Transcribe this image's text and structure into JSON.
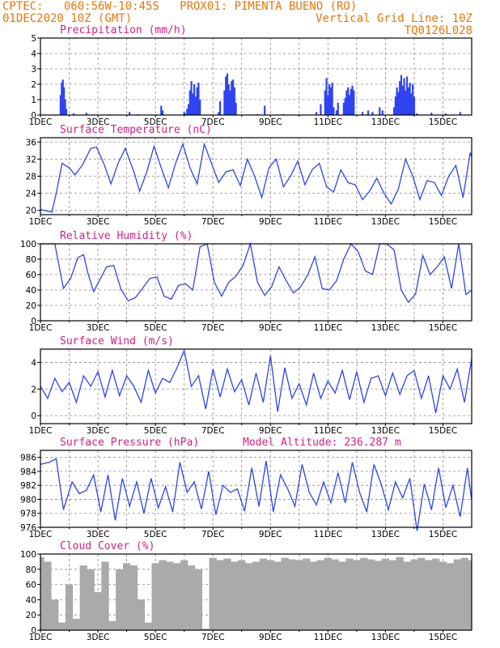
{
  "header": {
    "line1": "CPTEC:   060:56W-10:45S   PROX01: PIMENTA BUENO (RO)",
    "line2_left": "01DEC2020 10Z (GMT)",
    "line2_right": "Vertical Grid Line: 10Z",
    "line3_right": "TQ0126L028"
  },
  "colors": {
    "accent": "#e8760a",
    "title": "#d6207f",
    "series": "#2f44f0",
    "cloud": "#aaaaaa",
    "grid": "#8a8a8a"
  },
  "x_ticks": [
    "1DEC",
    "3DEC",
    "5DEC",
    "7DEC",
    "9DEC",
    "11DEC",
    "13DEC",
    "15DEC"
  ],
  "x_range_days": [
    0,
    15
  ],
  "chart_data": [
    {
      "id": "precip",
      "type": "bar",
      "title": "Precipitation (mm/h)",
      "ylim": [
        0,
        5
      ],
      "yticks": [
        0,
        1,
        2,
        3,
        4,
        5
      ],
      "x_unit": "days since 01DEC2020 10Z",
      "bars": [
        [
          0.7,
          1.3
        ],
        [
          0.74,
          2.1
        ],
        [
          0.78,
          2.3
        ],
        [
          0.82,
          1.8
        ],
        [
          0.86,
          1.0
        ],
        [
          0.9,
          0.4
        ],
        [
          1.15,
          0.1
        ],
        [
          1.6,
          0.15
        ],
        [
          2.4,
          0.05
        ],
        [
          3.1,
          0.2
        ],
        [
          3.4,
          0.05
        ],
        [
          3.4,
          0.05
        ],
        [
          4.2,
          0.6
        ],
        [
          4.25,
          0.3
        ],
        [
          5.0,
          0.2
        ],
        [
          5.05,
          0.1
        ],
        [
          5.1,
          0.4
        ],
        [
          5.15,
          0.7
        ],
        [
          5.2,
          1.6
        ],
        [
          5.25,
          2.2
        ],
        [
          5.3,
          1.4
        ],
        [
          5.35,
          2.0
        ],
        [
          5.4,
          1.2
        ],
        [
          5.45,
          1.8
        ],
        [
          5.5,
          2.1
        ],
        [
          5.55,
          1.0
        ],
        [
          6.2,
          0.2
        ],
        [
          6.25,
          0.9
        ],
        [
          6.4,
          1.6
        ],
        [
          6.45,
          2.5
        ],
        [
          6.5,
          2.7
        ],
        [
          6.55,
          2.0
        ],
        [
          6.6,
          1.6
        ],
        [
          6.65,
          2.2
        ],
        [
          6.7,
          2.3
        ],
        [
          6.75,
          1.8
        ],
        [
          6.8,
          0.8
        ],
        [
          7.55,
          0.05
        ],
        [
          7.8,
          0.6
        ],
        [
          8.45,
          0.05
        ],
        [
          9.0,
          0.05
        ],
        [
          9.6,
          0.2
        ],
        [
          9.75,
          0.7
        ],
        [
          9.9,
          1.6
        ],
        [
          9.95,
          2.4
        ],
        [
          10.0,
          1.3
        ],
        [
          10.05,
          2.0
        ],
        [
          10.1,
          1.8
        ],
        [
          10.15,
          2.1
        ],
        [
          10.2,
          0.5
        ],
        [
          10.3,
          0.3
        ],
        [
          10.35,
          0.8
        ],
        [
          10.55,
          0.8
        ],
        [
          10.6,
          1.1
        ],
        [
          10.65,
          1.6
        ],
        [
          10.7,
          1.8
        ],
        [
          10.75,
          1.3
        ],
        [
          10.8,
          1.7
        ],
        [
          10.85,
          1.9
        ],
        [
          10.9,
          1.6
        ],
        [
          11.2,
          0.2
        ],
        [
          11.4,
          0.3
        ],
        [
          11.55,
          0.2
        ],
        [
          11.8,
          0.5
        ],
        [
          11.9,
          0.3
        ],
        [
          12.3,
          0.5
        ],
        [
          12.35,
          1.2
        ],
        [
          12.4,
          1.8
        ],
        [
          12.45,
          1.5
        ],
        [
          12.5,
          2.2
        ],
        [
          12.55,
          2.6
        ],
        [
          12.6,
          1.9
        ],
        [
          12.65,
          2.4
        ],
        [
          12.7,
          1.6
        ],
        [
          12.75,
          2.5
        ],
        [
          12.8,
          1.8
        ],
        [
          12.85,
          2.1
        ],
        [
          12.9,
          1.4
        ],
        [
          12.95,
          2.0
        ],
        [
          13.0,
          1.2
        ],
        [
          13.1,
          0.1
        ],
        [
          13.6,
          0.15
        ],
        [
          14.1,
          0.1
        ],
        [
          14.6,
          0.2
        ]
      ]
    },
    {
      "id": "temp",
      "type": "line",
      "title": "Surface Temperature (nC)",
      "ylim": [
        19,
        37
      ],
      "yticks": [
        20,
        24,
        28,
        32,
        36
      ],
      "x_unit": "days since 01DEC2020 10Z",
      "x": [
        0,
        0.4,
        0.55,
        0.75,
        1.0,
        1.2,
        1.45,
        1.75,
        1.95,
        2.2,
        2.45,
        2.7,
        2.95,
        3.25,
        3.45,
        3.7,
        3.95,
        4.2,
        4.45,
        4.7,
        4.95,
        5.2,
        5.45,
        5.7,
        5.95,
        6.2,
        6.45,
        6.7,
        6.95,
        7.2,
        7.45,
        7.7,
        7.95,
        8.2,
        8.45,
        8.7,
        8.95,
        9.2,
        9.45,
        9.7,
        9.95,
        10.2,
        10.45,
        10.7,
        10.95,
        11.2,
        11.45,
        11.7,
        11.95,
        12.2,
        12.45,
        12.7,
        12.95,
        13.2,
        13.45,
        13.7,
        13.95,
        14.2,
        14.45,
        14.7,
        14.95,
        15.0
      ],
      "values": [
        20.2,
        19.6,
        24,
        31,
        30,
        28.3,
        30.5,
        34.5,
        34.8,
        31,
        26.2,
        31,
        34.5,
        29,
        24.5,
        29,
        35,
        30,
        25.3,
        31,
        35.5,
        30,
        26.2,
        35.5,
        31,
        26.5,
        29,
        29.5,
        25.8,
        32,
        28,
        23,
        30,
        32,
        25.5,
        28,
        31.5,
        26,
        29.5,
        31,
        25.5,
        24.3,
        29.5,
        26.5,
        26,
        22.5,
        24.5,
        27.5,
        24,
        21.5,
        25,
        32,
        28,
        22.5,
        27,
        26.5,
        23.5,
        28,
        30.5,
        23,
        33.5,
        32.5
      ]
    },
    {
      "id": "rh",
      "type": "line",
      "title": "Relative Humidity (%)",
      "ylim": [
        0,
        100
      ],
      "yticks": [
        0,
        20,
        40,
        60,
        80,
        100
      ],
      "x_unit": "days since 01DEC2020 10Z",
      "x": [
        0,
        0.5,
        0.8,
        1.05,
        1.3,
        1.5,
        1.65,
        1.85,
        2.05,
        2.3,
        2.55,
        2.8,
        3.05,
        3.3,
        3.55,
        3.8,
        4.05,
        4.3,
        4.55,
        4.8,
        5.05,
        5.3,
        5.55,
        5.8,
        6.05,
        6.3,
        6.55,
        6.8,
        7.05,
        7.3,
        7.55,
        7.8,
        8.05,
        8.3,
        8.55,
        8.8,
        9.05,
        9.3,
        9.55,
        9.8,
        10.05,
        10.3,
        10.55,
        10.8,
        11.05,
        11.3,
        11.55,
        11.8,
        12.05,
        12.3,
        12.55,
        12.8,
        13.05,
        13.3,
        13.55,
        13.8,
        14.05,
        14.3,
        14.55,
        14.8,
        15.0
      ],
      "values": [
        100,
        100,
        42,
        55,
        82,
        86,
        62,
        38,
        52,
        70,
        72,
        41,
        26,
        30,
        42,
        55,
        57,
        32,
        28,
        46,
        48,
        40,
        96,
        100,
        50,
        32,
        50,
        58,
        72,
        100,
        50,
        33,
        45,
        70,
        52,
        36,
        44,
        60,
        83,
        42,
        40,
        52,
        80,
        100,
        90,
        65,
        60,
        100,
        100,
        92,
        40,
        24,
        35,
        85,
        60,
        70,
        83,
        42,
        100,
        34,
        40
      ]
    },
    {
      "id": "wind",
      "type": "line",
      "title": "Surface Wind (m/s)",
      "ylim": [
        -0.6,
        5
      ],
      "yticks": [
        0,
        2,
        4
      ],
      "x_unit": "days since 01DEC2020 10Z",
      "x": [
        0,
        0.25,
        0.5,
        0.75,
        1.0,
        1.25,
        1.5,
        1.75,
        2.0,
        2.25,
        2.5,
        2.75,
        3.0,
        3.25,
        3.5,
        3.75,
        4.0,
        4.25,
        4.5,
        4.75,
        5.0,
        5.25,
        5.5,
        5.75,
        6.0,
        6.25,
        6.5,
        6.75,
        7.0,
        7.25,
        7.5,
        7.75,
        8.0,
        8.25,
        8.5,
        8.75,
        9.0,
        9.25,
        9.5,
        9.75,
        10.0,
        10.25,
        10.5,
        10.75,
        11.0,
        11.25,
        11.5,
        11.75,
        12.0,
        12.25,
        12.5,
        12.75,
        13.0,
        13.25,
        13.5,
        13.75,
        14.0,
        14.25,
        14.5,
        14.75,
        15.0
      ],
      "values": [
        2.2,
        1.3,
        2.8,
        1.8,
        2.5,
        1.0,
        3.0,
        2.2,
        3.3,
        1.4,
        3.4,
        1.5,
        3.0,
        2.2,
        1.0,
        3.4,
        1.7,
        2.8,
        2.5,
        3.6,
        4.9,
        2.2,
        3.0,
        0.5,
        3.5,
        1.4,
        3.5,
        1.8,
        2.7,
        0.8,
        3.2,
        1.0,
        4.5,
        0.3,
        3.6,
        1.3,
        2.4,
        0.8,
        3.2,
        1.3,
        2.6,
        1.7,
        3.4,
        1.2,
        3.3,
        1.0,
        2.8,
        3.0,
        1.5,
        3.2,
        1.6,
        3.0,
        3.4,
        1.3,
        3.0,
        0.2,
        3.0,
        2.0,
        3.5,
        1.0,
        4.3
      ]
    },
    {
      "id": "pres",
      "type": "line",
      "title": "Surface Pressure (hPa)",
      "subtitle": "Model Altitude: 236.287 m",
      "ylim": [
        976,
        987
      ],
      "yticks": [
        976,
        978,
        980,
        982,
        984,
        986
      ],
      "x_unit": "days since 01DEC2020 10Z",
      "x": [
        0,
        0.3,
        0.55,
        0.8,
        1.1,
        1.35,
        1.6,
        1.85,
        2.1,
        2.35,
        2.6,
        2.85,
        3.1,
        3.35,
        3.6,
        3.85,
        4.1,
        4.35,
        4.6,
        4.85,
        5.1,
        5.35,
        5.6,
        5.85,
        6.1,
        6.35,
        6.6,
        6.85,
        7.1,
        7.35,
        7.6,
        7.85,
        8.1,
        8.35,
        8.6,
        8.85,
        9.1,
        9.35,
        9.6,
        9.85,
        10.1,
        10.35,
        10.6,
        10.85,
        11.1,
        11.35,
        11.6,
        11.85,
        12.1,
        12.35,
        12.6,
        12.85,
        13.1,
        13.35,
        13.6,
        13.85,
        14.1,
        14.35,
        14.6,
        14.85,
        15.0
      ],
      "values": [
        985,
        985.3,
        985.8,
        978.5,
        982.5,
        980.8,
        981.3,
        983.5,
        978.2,
        983.5,
        977,
        983,
        979,
        982.5,
        978,
        983,
        978.8,
        981.8,
        978.2,
        985.3,
        981,
        982.5,
        978.6,
        984,
        977.8,
        982,
        981,
        981.5,
        978.3,
        984.5,
        979,
        985.5,
        978.2,
        983.5,
        981.5,
        979,
        985,
        981,
        979.2,
        982.5,
        979.5,
        983.8,
        979.5,
        985.3,
        981,
        978.2,
        985,
        982.2,
        978.5,
        982.5,
        980.2,
        983,
        975.5,
        982.2,
        978.5,
        984.5,
        978.8,
        982,
        977.5,
        984.5,
        979.8
      ]
    },
    {
      "id": "cloud",
      "type": "bar",
      "title": "Cloud Cover (%)",
      "ylim": [
        0,
        100
      ],
      "yticks": [
        0,
        20,
        40,
        60,
        80,
        100
      ],
      "x_unit": "days since 01DEC2020 10Z",
      "x": [
        0,
        0.25,
        0.5,
        0.75,
        1.0,
        1.25,
        1.5,
        1.75,
        2.0,
        2.25,
        2.5,
        2.75,
        3.0,
        3.25,
        3.5,
        3.75,
        4.0,
        4.25,
        4.5,
        4.75,
        5.0,
        5.25,
        5.5,
        5.75,
        6.0,
        6.25,
        6.5,
        6.75,
        7.0,
        7.25,
        7.5,
        7.75,
        8.0,
        8.25,
        8.5,
        8.75,
        9.0,
        9.25,
        9.5,
        9.75,
        10.0,
        10.25,
        10.5,
        10.75,
        11.0,
        11.25,
        11.5,
        11.75,
        12.0,
        12.25,
        12.5,
        12.75,
        13.0,
        13.25,
        13.5,
        13.75,
        14.0,
        14.25,
        14.5,
        14.75,
        15.0
      ],
      "values": [
        96,
        90,
        40,
        10,
        60,
        15,
        85,
        80,
        50,
        90,
        12,
        80,
        88,
        85,
        40,
        10,
        88,
        92,
        90,
        88,
        92,
        85,
        80,
        2,
        95,
        92,
        94,
        90,
        92,
        88,
        90,
        94,
        92,
        90,
        95,
        93,
        92,
        94,
        90,
        92,
        95,
        93,
        90,
        94,
        92,
        95,
        93,
        91,
        94,
        92,
        96,
        90,
        93,
        95,
        92,
        94,
        90,
        88,
        93,
        95,
        92
      ]
    }
  ]
}
